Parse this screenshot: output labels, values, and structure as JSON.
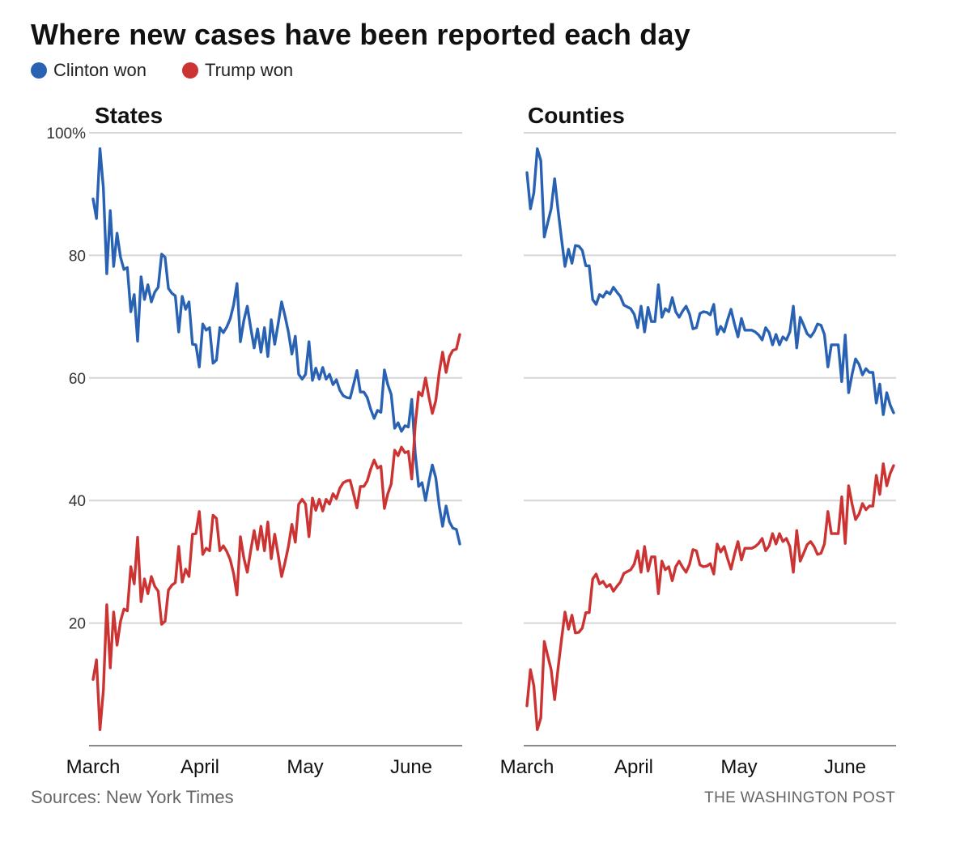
{
  "title": "Where new cases have been reported each day",
  "legend": [
    {
      "label": "Clinton won",
      "color": "#2a62b3"
    },
    {
      "label": "Trump won",
      "color": "#cc3333"
    }
  ],
  "source": "Sources: New York Times",
  "credit": "THE WASHINGTON POST",
  "chart_data": [
    {
      "type": "line",
      "title": "States",
      "xlabel": "",
      "ylabel": "",
      "ylim": [
        0,
        100
      ],
      "yticks": [
        "100%",
        "80",
        "60",
        "40",
        "20"
      ],
      "ytick_values": [
        100,
        80,
        60,
        40,
        20
      ],
      "xticks": [
        "March",
        "April",
        "May",
        "June"
      ],
      "xtick_days": [
        0,
        31,
        61,
        92
      ],
      "grid": true,
      "x_start": "March 1",
      "x_unit": "day",
      "series": [
        {
          "name": "Clinton won",
          "color": "#2a62b3",
          "values": [
            89.2,
            86,
            97.4,
            91,
            77,
            87.3,
            78.2,
            83.6,
            79.7,
            77.7,
            78,
            70.8,
            73.6,
            66,
            76.5,
            72.8,
            75.2,
            72.4,
            74,
            74.8,
            80.2,
            79.7,
            74.6,
            73.8,
            73.4,
            67.5,
            73.3,
            71.2,
            72.4,
            65.5,
            65.4,
            61.8,
            68.8,
            67.8,
            68.2,
            62.4,
            62.9,
            68.2,
            67.4,
            68.3,
            69.6,
            71.9,
            75.4,
            65.9,
            69.4,
            71.7,
            68.2,
            64.9,
            68,
            64.2,
            68.2,
            63.5,
            69.5,
            65.5,
            68.8,
            72.4,
            70.1,
            67.5,
            63.9,
            66.8,
            60.6,
            59.8,
            60.6,
            65.9,
            59.6,
            61.6,
            59.8,
            61.7,
            59.8,
            60.6,
            58.9,
            59.7,
            58,
            57.1,
            56.8,
            56.7,
            58.9,
            61.2,
            57.7,
            57.7,
            56.8,
            54.9,
            53.4,
            54.7,
            54.4,
            61.3,
            58.9,
            57.3,
            51.8,
            52.7,
            51.3,
            52.2,
            52,
            56.5,
            47.7,
            42.3,
            42.9,
            40,
            43.1,
            45.8,
            43.7,
            39.1,
            35.8,
            39.1,
            36.5,
            35.5,
            35.3,
            32.9
          ]
        },
        {
          "name": "Trump won",
          "color": "#cc3333",
          "values": [
            10.8,
            14,
            2.6,
            9,
            23,
            12.7,
            21.8,
            16.4,
            20.3,
            22.3,
            22,
            29.2,
            26.4,
            34,
            23.5,
            27.2,
            24.8,
            27.6,
            26,
            25.2,
            19.8,
            20.3,
            25.4,
            26.2,
            26.6,
            32.5,
            26.7,
            28.8,
            27.6,
            34.5,
            34.6,
            38.2,
            31.2,
            32.2,
            31.8,
            37.6,
            37.1,
            31.8,
            32.6,
            31.7,
            30.4,
            28.1,
            24.6,
            34.1,
            30.6,
            28.3,
            31.8,
            35.1,
            32,
            35.8,
            31.8,
            36.5,
            30.5,
            34.5,
            31.2,
            27.6,
            29.9,
            32.5,
            36.1,
            33.2,
            39.4,
            40.2,
            39.4,
            34.1,
            40.4,
            38.4,
            40.2,
            38.3,
            40.2,
            39.4,
            41.1,
            40.3,
            42,
            42.9,
            43.2,
            43.3,
            41.1,
            38.8,
            42.3,
            42.3,
            43.2,
            45.1,
            46.6,
            45.3,
            45.6,
            38.7,
            41.1,
            42.7,
            48.2,
            47.3,
            48.7,
            47.8,
            48,
            43.5,
            52.3,
            57.7,
            57.1,
            60,
            56.9,
            54.2,
            56.3,
            60.9,
            64.2,
            60.9,
            63.5,
            64.5,
            64.7,
            67.1
          ]
        }
      ]
    },
    {
      "type": "line",
      "title": "Counties",
      "xlabel": "",
      "ylabel": "",
      "ylim": [
        0,
        100
      ],
      "yticks": [
        "100%",
        "80",
        "60",
        "40",
        "20"
      ],
      "ytick_values": [
        100,
        80,
        60,
        40,
        20
      ],
      "xticks": [
        "March",
        "April",
        "May",
        "June"
      ],
      "xtick_days": [
        0,
        31,
        61,
        92
      ],
      "grid": true,
      "x_start": "March 1",
      "x_unit": "day",
      "series": [
        {
          "name": "Clinton won",
          "color": "#2a62b3",
          "values": [
            93.5,
            87.6,
            90.2,
            97.4,
            95.5,
            83,
            85.3,
            87.6,
            92.5,
            87.3,
            82.7,
            78.2,
            81,
            78.7,
            81.6,
            81.5,
            80.8,
            78.3,
            78.3,
            72.8,
            72,
            73.6,
            73.2,
            74.1,
            73.7,
            74.8,
            74,
            73.3,
            71.9,
            71.6,
            71.3,
            70.4,
            68.2,
            71.7,
            67.5,
            71.5,
            69.2,
            69.2,
            75.2,
            69.9,
            71.3,
            70.8,
            73.1,
            70.8,
            69.9,
            70.9,
            71.7,
            70.4,
            68,
            68.2,
            70.5,
            70.8,
            70.7,
            70.3,
            72,
            67.1,
            68.4,
            67.5,
            69.5,
            71.2,
            68.8,
            66.7,
            69.7,
            67.8,
            67.8,
            67.8,
            67.5,
            67,
            66.2,
            68.2,
            67.4,
            65.4,
            67.1,
            65.4,
            66.7,
            66.2,
            67.5,
            71.7,
            64.9,
            69.9,
            68.6,
            67.2,
            66.7,
            67.5,
            68.8,
            68.6,
            67.1,
            61.8,
            65.4,
            65.4,
            65.4,
            59.4,
            67,
            57.6,
            60.6,
            63.1,
            62.2,
            60.5,
            61.5,
            60.9,
            60.9,
            55.9,
            59,
            54,
            57.6,
            55.6,
            54.3
          ]
        },
        {
          "name": "Trump won",
          "color": "#cc3333",
          "values": [
            6.5,
            12.4,
            9.8,
            2.6,
            4.5,
            17,
            14.7,
            12.4,
            7.5,
            12.7,
            17.3,
            21.8,
            19,
            21.3,
            18.4,
            18.5,
            19.2,
            21.7,
            21.7,
            27.2,
            28,
            26.4,
            26.8,
            25.9,
            26.3,
            25.2,
            26,
            26.7,
            28.1,
            28.4,
            28.7,
            29.6,
            31.8,
            28.3,
            32.5,
            28.5,
            30.8,
            30.8,
            24.8,
            30.1,
            28.7,
            29.2,
            26.9,
            29.2,
            30.1,
            29.1,
            28.3,
            29.6,
            32,
            31.8,
            29.5,
            29.2,
            29.3,
            29.7,
            28,
            32.9,
            31.6,
            32.5,
            30.5,
            28.8,
            31.2,
            33.3,
            30.3,
            32.2,
            32.2,
            32.2,
            32.5,
            33,
            33.8,
            31.8,
            32.6,
            34.6,
            32.9,
            34.6,
            33.3,
            33.8,
            32.5,
            28.3,
            35.1,
            30.1,
            31.4,
            32.8,
            33.3,
            32.5,
            31.2,
            31.4,
            32.9,
            38.2,
            34.6,
            34.6,
            34.6,
            40.6,
            33,
            42.4,
            39.4,
            36.9,
            37.8,
            39.5,
            38.5,
            39.1,
            39.1,
            44.1,
            41,
            46,
            42.4,
            44.4,
            45.7
          ]
        }
      ]
    }
  ]
}
